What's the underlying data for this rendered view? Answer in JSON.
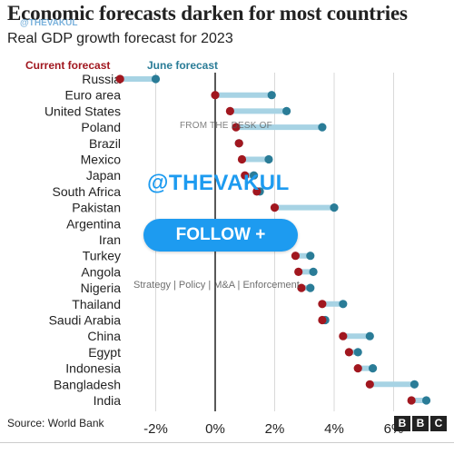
{
  "title": "Economic forecasts darken for most countries",
  "subtitle": "Real GDP growth forecast for 2023",
  "legend": {
    "current": "Current forecast",
    "june": "June forecast"
  },
  "source": "Source: World Bank",
  "logo": [
    "B",
    "B",
    "C"
  ],
  "watermarks": {
    "handle_small": "@THEVAKUL",
    "desk": "FROM THE DESK OF",
    "handle_big": "@THEVAKUL",
    "follow": "FOLLOW +",
    "strategy": "Strategy | Policy | M&A | Enforcement"
  },
  "colors": {
    "current": "#a1171f",
    "june": "#2a7c97",
    "connector": "#a7d3e4",
    "zero_line": "#222222",
    "grid": "#d9d9d9"
  },
  "chart_data": {
    "type": "dot",
    "x_axis": {
      "min": -3.6,
      "max": 7.4,
      "ticks": [
        -2,
        0,
        2,
        4,
        6
      ],
      "tick_labels": [
        "-2%",
        "0%",
        "2%",
        "4%",
        "6%"
      ]
    },
    "categories": [
      "Russia",
      "Euro area",
      "United States",
      "Poland",
      "Brazil",
      "Mexico",
      "Japan",
      "South Africa",
      "Pakistan",
      "Argentina",
      "Iran",
      "Turkey",
      "Angola",
      "Nigeria",
      "Thailand",
      "Saudi Arabia",
      "China",
      "Egypt",
      "Indonesia",
      "Bangladesh",
      "India"
    ],
    "series": [
      {
        "name": "Current forecast",
        "values": [
          -3.2,
          0.0,
          0.5,
          0.7,
          0.8,
          0.9,
          1.0,
          1.4,
          2.0,
          2.0,
          2.2,
          2.7,
          2.8,
          2.9,
          3.6,
          3.6,
          4.3,
          4.5,
          4.8,
          5.2,
          6.6
        ]
      },
      {
        "name": "June forecast",
        "values": [
          -2.0,
          1.9,
          2.4,
          3.6,
          0.8,
          1.8,
          1.3,
          1.5,
          4.0,
          2.0,
          2.2,
          3.2,
          3.3,
          3.2,
          4.3,
          3.7,
          5.2,
          4.8,
          5.3,
          6.7,
          7.1
        ]
      }
    ],
    "grid": true
  }
}
